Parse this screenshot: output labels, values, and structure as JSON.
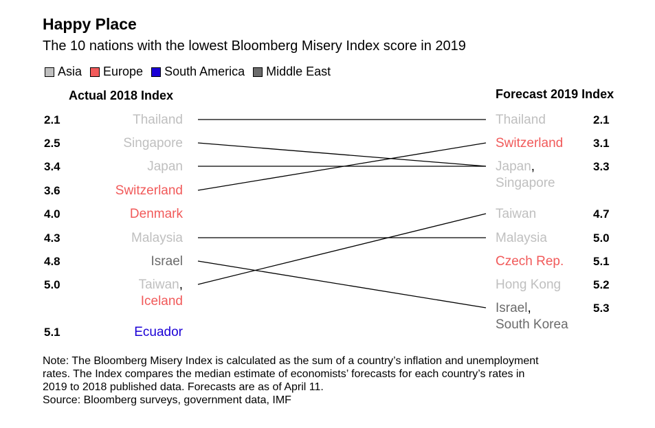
{
  "header": {
    "title": "Happy Place",
    "subtitle": "The 10 nations with the lowest Bloomberg Misery Index score in 2019"
  },
  "legend": [
    {
      "label": "Asia",
      "color": "#bfbfbf"
    },
    {
      "label": "Europe",
      "color": "#f15a5a"
    },
    {
      "label": "South America",
      "color": "#1b00d6"
    },
    {
      "label": "Middle East",
      "color": "#6b6b6b"
    }
  ],
  "chart_data": {
    "type": "slope",
    "left_header": "Actual 2018 Index",
    "right_header": "Forecast 2019 Index",
    "left_labels": [
      {
        "value": "2.1",
        "lines": [
          {
            "text": "Thailand",
            "region": "Asia"
          }
        ]
      },
      {
        "value": "2.5",
        "lines": [
          {
            "text": "Singapore",
            "region": "Asia"
          }
        ]
      },
      {
        "value": "3.4",
        "lines": [
          {
            "text": "Japan",
            "region": "Asia"
          }
        ]
      },
      {
        "value": "3.6",
        "lines": [
          {
            "text": "Switzerland",
            "region": "Europe"
          }
        ]
      },
      {
        "value": "4.0",
        "lines": [
          {
            "text": "Denmark",
            "region": "Europe"
          }
        ]
      },
      {
        "value": "4.3",
        "lines": [
          {
            "text": "Malaysia",
            "region": "Asia"
          }
        ]
      },
      {
        "value": "4.8",
        "lines": [
          {
            "text": "Israel",
            "region": "Middle East"
          }
        ]
      },
      {
        "value": "5.0",
        "lines": [
          {
            "text": "Taiwan",
            "region": "Asia",
            "suffix": ","
          },
          {
            "text": "Iceland",
            "region": "Europe"
          }
        ]
      },
      {
        "value": "5.1",
        "lines": [
          {
            "text": "Ecuador",
            "region": "South America"
          }
        ]
      }
    ],
    "right_labels": [
      {
        "value": "2.1",
        "lines": [
          {
            "text": "Thailand",
            "region": "Asia"
          }
        ]
      },
      {
        "value": "3.1",
        "lines": [
          {
            "text": "Switzerland",
            "region": "Europe"
          }
        ]
      },
      {
        "value": "3.3",
        "lines": [
          {
            "text": "Japan",
            "region": "Asia",
            "suffix": ","
          },
          {
            "text": "Singapore",
            "region": "Asia"
          }
        ]
      },
      {
        "value": "4.7",
        "lines": [
          {
            "text": "Taiwan",
            "region": "Asia"
          }
        ]
      },
      {
        "value": "5.0",
        "lines": [
          {
            "text": "Malaysia",
            "region": "Asia"
          }
        ]
      },
      {
        "value": "5.1",
        "lines": [
          {
            "text": "Czech Rep.",
            "region": "Europe"
          }
        ]
      },
      {
        "value": "5.2",
        "lines": [
          {
            "text": "Hong Kong",
            "region": "Asia"
          }
        ]
      },
      {
        "value": "5.3",
        "lines": [
          {
            "text": "Israel",
            "region": "Middle East",
            "suffix": ","
          },
          {
            "text": "South Korea",
            "region": "Middle East"
          }
        ]
      }
    ],
    "connections": [
      {
        "country": "Thailand",
        "actual_2018": 2.1,
        "forecast_2019": 2.1
      },
      {
        "country": "Singapore",
        "actual_2018": 2.5,
        "forecast_2019": 3.3
      },
      {
        "country": "Japan",
        "actual_2018": 3.4,
        "forecast_2019": 3.3
      },
      {
        "country": "Switzerland",
        "actual_2018": 3.6,
        "forecast_2019": 3.1
      },
      {
        "country": "Malaysia",
        "actual_2018": 4.3,
        "forecast_2019": 5.0
      },
      {
        "country": "Israel",
        "actual_2018": 4.8,
        "forecast_2019": 5.3
      },
      {
        "country": "Taiwan",
        "actual_2018": 5.0,
        "forecast_2019": 4.7
      }
    ]
  },
  "note": {
    "lines": [
      "Note: The Bloomberg Misery Index is calculated as the sum of a country’s inflation and unemployment",
      "rates. The Index compares the median estimate of economists’ forecasts for each country’s rates in",
      "2019 to 2018 published data. Forecasts are as of April 11."
    ],
    "source": "Source: Bloomberg surveys, government data, IMF"
  }
}
